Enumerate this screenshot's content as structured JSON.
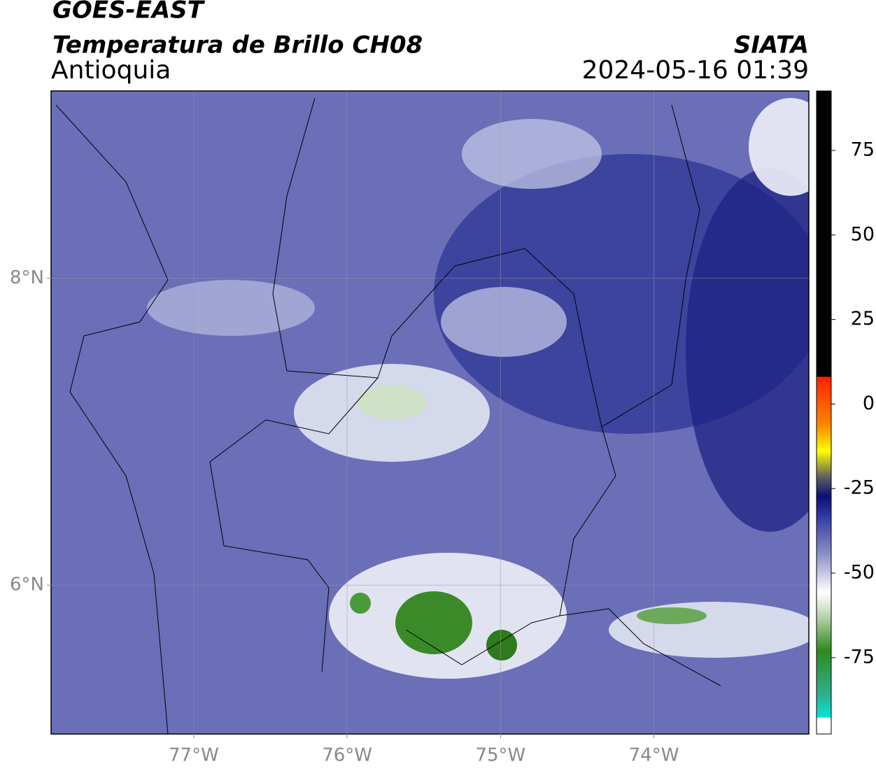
{
  "header": {
    "satellite": "GOES-EAST",
    "product": "Temperatura de Brillo CH08",
    "region": "Antioquia",
    "source": "SIATA",
    "datetime": "2024-05-16 01:39"
  },
  "map": {
    "xlim": [
      -77.93,
      -72.99
    ],
    "ylim": [
      5.03,
      9.22
    ],
    "xticks": [
      {
        "value": -77,
        "label": "77°W"
      },
      {
        "value": -76,
        "label": "76°W"
      },
      {
        "value": -75,
        "label": "75°W"
      },
      {
        "value": -74,
        "label": "74°W"
      }
    ],
    "yticks": [
      {
        "value": 8,
        "label": "8°N"
      },
      {
        "value": 6,
        "label": "6°N"
      }
    ],
    "grid": true
  },
  "colorbar": {
    "lim": [
      -97.6,
      92.6
    ],
    "ticks": [
      75,
      50,
      25,
      0,
      -25,
      -50,
      -75
    ]
  }
}
